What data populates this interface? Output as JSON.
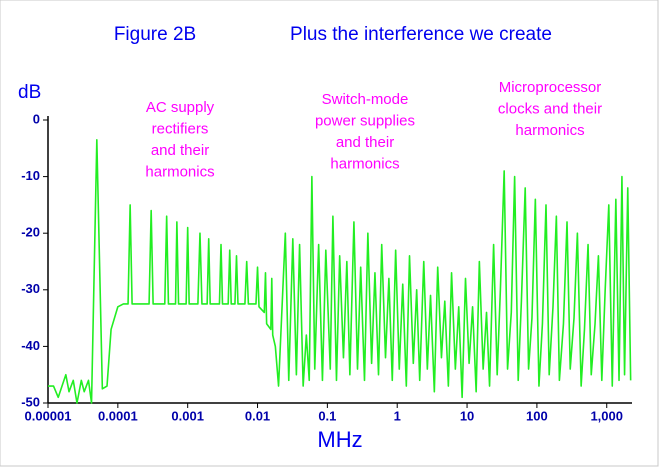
{
  "chart_data": {
    "type": "line",
    "title": "Figure 2B",
    "subtitle": "Plus the interference we create",
    "y_label": "dB",
    "x_label": "MHz",
    "annotations": [
      {
        "lines": [
          "AC supply",
          "rectifiers",
          "and their",
          "harmonics"
        ]
      },
      {
        "lines": [
          "Switch-mode",
          "power supplies",
          "and their",
          "harmonics"
        ]
      },
      {
        "lines": [
          "Microprocessor",
          "clocks and their",
          "harmonics"
        ]
      }
    ],
    "log_x": true,
    "color": "#22ee22",
    "xlim": [
      1e-05,
      2300
    ],
    "ylim": [
      -50,
      0
    ],
    "xticks": [
      {
        "value": 1e-05,
        "label": "0.00001"
      },
      0.0001,
      0.001,
      0.01,
      0.1,
      1,
      10,
      100,
      {
        "value": 1000,
        "label": "1,000"
      }
    ],
    "yticks": [
      0,
      -10,
      -20,
      -30,
      -40,
      -50
    ],
    "x": [
      1e-05,
      1.2e-05,
      1.4e-05,
      1.8e-05,
      2e-05,
      2.3e-05,
      2.6e-05,
      3e-05,
      3.3e-05,
      3.8e-05,
      4.2e-05,
      5e-05,
      6e-05,
      7e-05,
      8e-05,
      0.0001,
      0.00012,
      0.00014,
      0.00015,
      0.00016,
      0.00028,
      0.0003,
      0.00032,
      0.00047,
      0.0005,
      0.00053,
      0.00067,
      0.0007,
      0.00074,
      0.00095,
      0.001,
      0.00105,
      0.0014,
      0.0015,
      0.0016,
      0.0019,
      0.002,
      0.0021,
      0.00285,
      0.003,
      0.00315,
      0.0038,
      0.004,
      0.0042,
      0.00475,
      0.005,
      0.00525,
      0.0066,
      0.007,
      0.0074,
      0.0095,
      0.01,
      0.0105,
      0.0125,
      0.013,
      0.0135,
      0.0155,
      0.016,
      0.0165,
      0.018,
      0.02,
      0.025,
      0.028,
      0.032,
      0.036,
      0.04,
      0.045,
      0.05,
      0.055,
      0.06,
      0.066,
      0.075,
      0.085,
      0.095,
      0.11,
      0.12,
      0.135,
      0.15,
      0.17,
      0.19,
      0.21,
      0.24,
      0.27,
      0.3,
      0.34,
      0.38,
      0.43,
      0.48,
      0.54,
      0.6,
      0.68,
      0.76,
      0.85,
      0.95,
      1.07,
      1.2,
      1.35,
      1.5,
      1.7,
      1.9,
      2.1,
      2.4,
      2.7,
      3,
      3.4,
      3.8,
      4.3,
      4.8,
      5.4,
      6,
      6.8,
      7.6,
      8.5,
      9.5,
      10.7,
      12,
      13.5,
      15,
      17,
      19,
      21,
      24,
      27,
      30,
      34,
      38,
      43,
      48,
      54,
      60,
      68,
      76,
      85,
      95,
      107,
      120,
      135,
      150,
      170,
      190,
      210,
      240,
      270,
      300,
      340,
      380,
      430,
      480,
      540,
      600,
      680,
      760,
      850,
      950,
      1070,
      1200,
      1350,
      1500,
      1650,
      1800,
      2000,
      2200
    ],
    "values": [
      -47,
      -47,
      -49,
      -45,
      -48,
      -46,
      -50,
      -46,
      -48,
      -46,
      -50,
      -3.5,
      -47.5,
      -47,
      -37,
      -33,
      -32.5,
      -32.5,
      -15,
      -32.5,
      -32.5,
      -16,
      -32.5,
      -32.5,
      -17,
      -32.5,
      -32.5,
      -18,
      -32.5,
      -32.5,
      -19,
      -32.5,
      -32.5,
      -20,
      -32.5,
      -32.5,
      -21,
      -32.5,
      -32.5,
      -22,
      -32.5,
      -32.5,
      -23,
      -32.5,
      -32.5,
      -24,
      -32.5,
      -32.5,
      -25,
      -32.5,
      -32.5,
      -26,
      -33,
      -34,
      -27,
      -36,
      -37,
      -28,
      -38,
      -40,
      -47,
      -20,
      -46,
      -21,
      -45,
      -22,
      -47,
      -38,
      -46,
      -10,
      -44,
      -22,
      -46,
      -23,
      -44,
      -17,
      -46,
      -24,
      -42,
      -25,
      -45,
      -18,
      -44,
      -26,
      -46,
      -20,
      -43,
      -27,
      -45,
      -22,
      -42,
      -28,
      -46,
      -23,
      -44,
      -29,
      -47,
      -24,
      -43,
      -30,
      -46,
      -25,
      -44,
      -31,
      -48,
      -26,
      -42,
      -32,
      -47,
      -27,
      -44,
      -33,
      -49,
      -28,
      -43,
      -33,
      -48,
      -25,
      -44,
      -34,
      -47,
      -22,
      -45,
      -30,
      -9,
      -44,
      -34,
      -10,
      -46,
      -32,
      -12,
      -44,
      -35,
      -14,
      -47,
      -36,
      -15,
      -45,
      -33,
      -17,
      -46,
      -36,
      -18,
      -44,
      -35,
      -20,
      -47,
      -37,
      -22,
      -45,
      -36,
      -24,
      -46,
      -30,
      -15,
      -47,
      -14,
      -46,
      -10,
      -45,
      -12,
      -46
    ]
  }
}
